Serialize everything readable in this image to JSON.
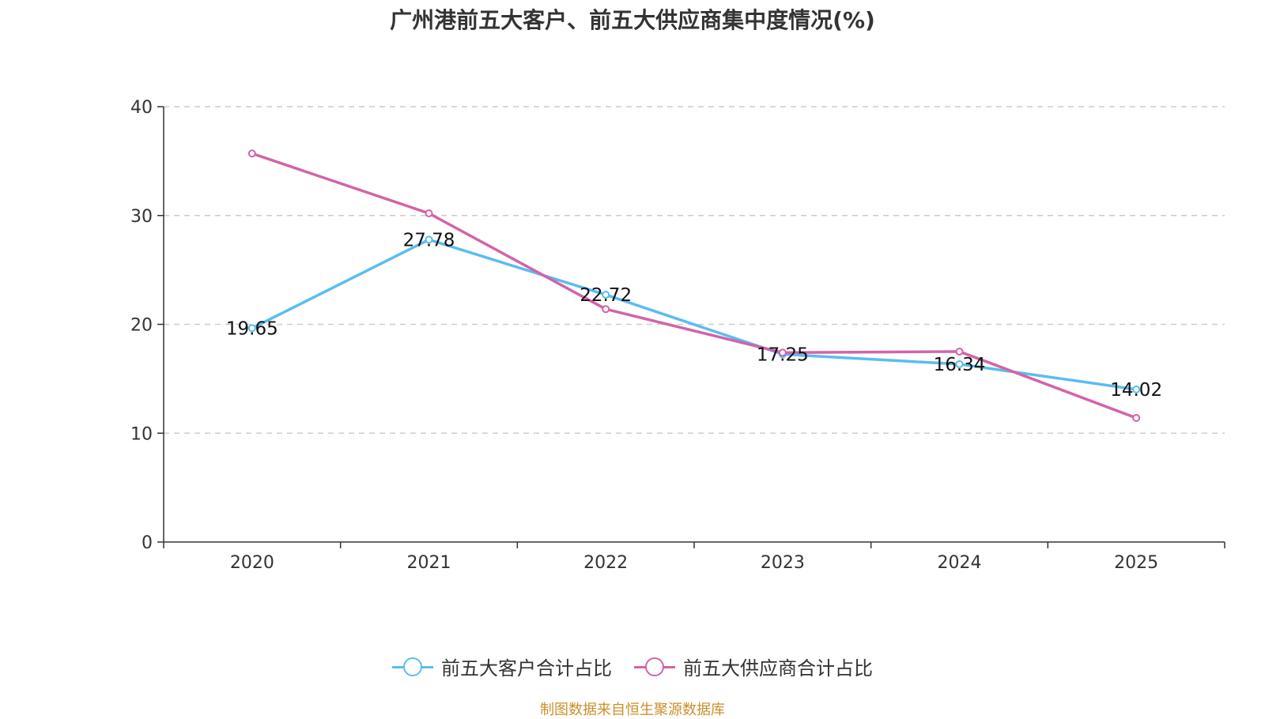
{
  "chart_data": {
    "type": "line",
    "title": "广州港前五大客户、前五大供应商集中度情况(%)",
    "categories": [
      "2020",
      "2021",
      "2022",
      "2023",
      "2024",
      "2025"
    ],
    "ylim": [
      0,
      40
    ],
    "yticks": [
      0,
      10,
      20,
      30,
      40
    ],
    "grid": true,
    "legend_position": "bottom",
    "series": [
      {
        "name": "前五大客户合计占比",
        "color": "#5bbcf0",
        "values": [
          19.65,
          27.78,
          22.72,
          17.25,
          16.34,
          14.02
        ],
        "labels": [
          "19.65",
          "27.78",
          "22.72",
          "17.25",
          "16.34",
          "14.02"
        ]
      },
      {
        "name": "前五大供应商合计占比",
        "color": "#d264a8",
        "values": [
          35.7,
          30.2,
          21.4,
          17.4,
          17.5,
          11.4
        ]
      }
    ]
  },
  "source": "制图数据来自恒生聚源数据库"
}
